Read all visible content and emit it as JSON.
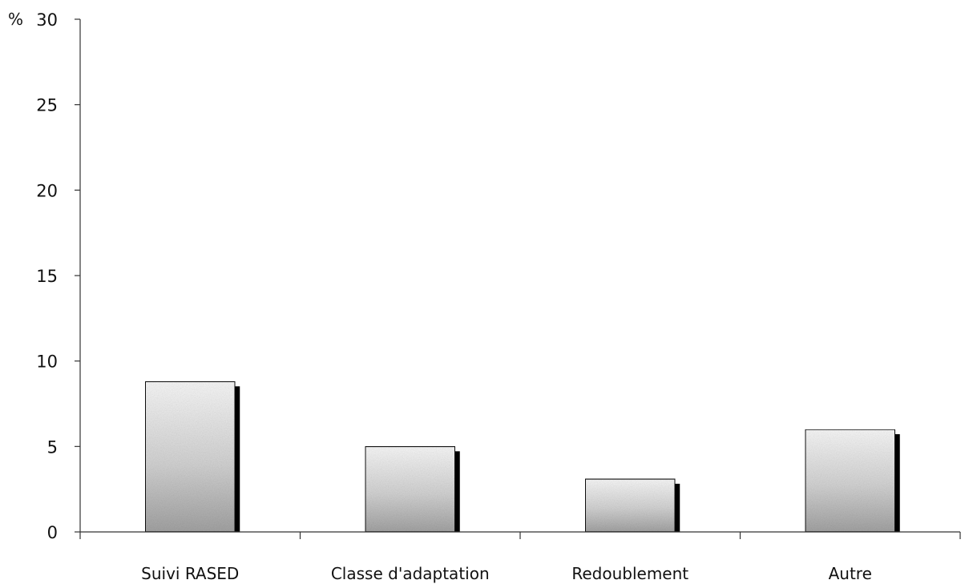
{
  "chart_data": {
    "type": "bar",
    "title": "",
    "xlabel": "",
    "ylabel": "%",
    "categories": [
      "Suivi RASED",
      "Classe d'adaptation",
      "Redoublement",
      "Autre"
    ],
    "values": [
      8.8,
      5.0,
      3.1,
      6.0
    ],
    "ylim": [
      0,
      30
    ],
    "yticks": [
      0,
      5,
      10,
      15,
      20,
      25,
      30
    ],
    "grid": false,
    "legend": "none",
    "colors": {
      "bar_fill_light": "#f4f4f4",
      "bar_fill_dark": "#9a9a9a",
      "bar_shadow": "#000000",
      "axis": "#333333"
    }
  }
}
